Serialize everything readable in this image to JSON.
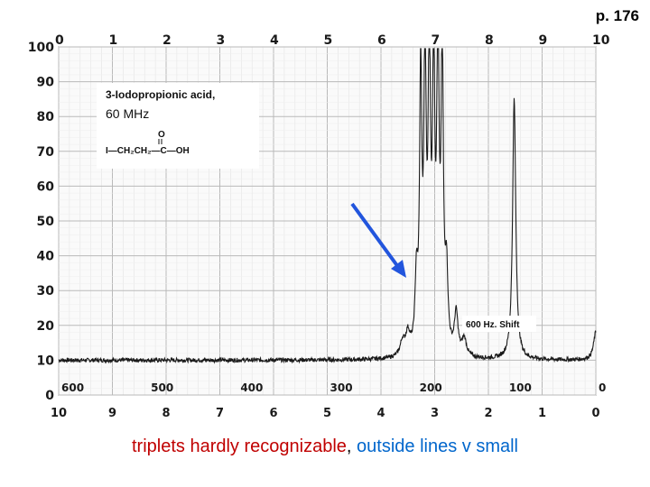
{
  "page_label": "p. 176",
  "caption": {
    "part1": "triplets hardly recognizable",
    "sep": ", ",
    "part2": "outside lines v small",
    "color1": "#c00000",
    "color2": "#0066cc"
  },
  "compound_box": {
    "title": "3-Iodopropionic acid,",
    "frequency": "60 MHz",
    "formula_main": "I—CH₂CH₂—C—OH",
    "formula_o": "O"
  },
  "shift_label": "600 Hz. Shift",
  "arrow_color": "#2255dd",
  "chart_data": {
    "type": "line",
    "title": "",
    "xlabel": "",
    "ylabel": "",
    "top_axis_ticks": [
      "0",
      "1",
      "2",
      "3",
      "4",
      "5",
      "6",
      "7",
      "8",
      "9",
      "10"
    ],
    "bottom_axis_ticks": [
      "10",
      "9",
      "8",
      "7",
      "6",
      "5",
      "4",
      "3",
      "2",
      "1",
      "0"
    ],
    "hz_ticks": [
      "600",
      "500",
      "400",
      "300",
      "200",
      "100",
      "0"
    ],
    "y_ticks": [
      "100",
      "90",
      "80",
      "70",
      "60",
      "50",
      "40",
      "30",
      "20",
      "10",
      "0"
    ],
    "xlim_ppm": [
      10,
      0
    ],
    "ylim": [
      0,
      100
    ],
    "grid": true,
    "baseline": 10,
    "series": [
      {
        "peaks": [
          {
            "ppm": 3.34,
            "height": 30,
            "width": 0.03
          },
          {
            "ppm": 3.26,
            "height": 88,
            "width": 0.025
          },
          {
            "ppm": 3.18,
            "height": 94,
            "width": 0.025
          },
          {
            "ppm": 3.1,
            "height": 96,
            "width": 0.025
          },
          {
            "ppm": 3.02,
            "height": 92,
            "width": 0.025
          },
          {
            "ppm": 2.94,
            "height": 97,
            "width": 0.025
          },
          {
            "ppm": 2.86,
            "height": 95,
            "width": 0.025
          },
          {
            "ppm": 2.78,
            "height": 32,
            "width": 0.03
          },
          {
            "ppm": 2.6,
            "height": 22,
            "width": 0.04
          },
          {
            "ppm": 2.45,
            "height": 15,
            "width": 0.05
          },
          {
            "ppm": 3.6,
            "height": 14,
            "width": 0.05
          },
          {
            "ppm": 3.5,
            "height": 16,
            "width": 0.05
          },
          {
            "ppm": 1.52,
            "height": 85,
            "width": 0.035
          },
          {
            "ppm": 0.0,
            "height": 18,
            "width": 0.05
          }
        ]
      }
    ]
  }
}
